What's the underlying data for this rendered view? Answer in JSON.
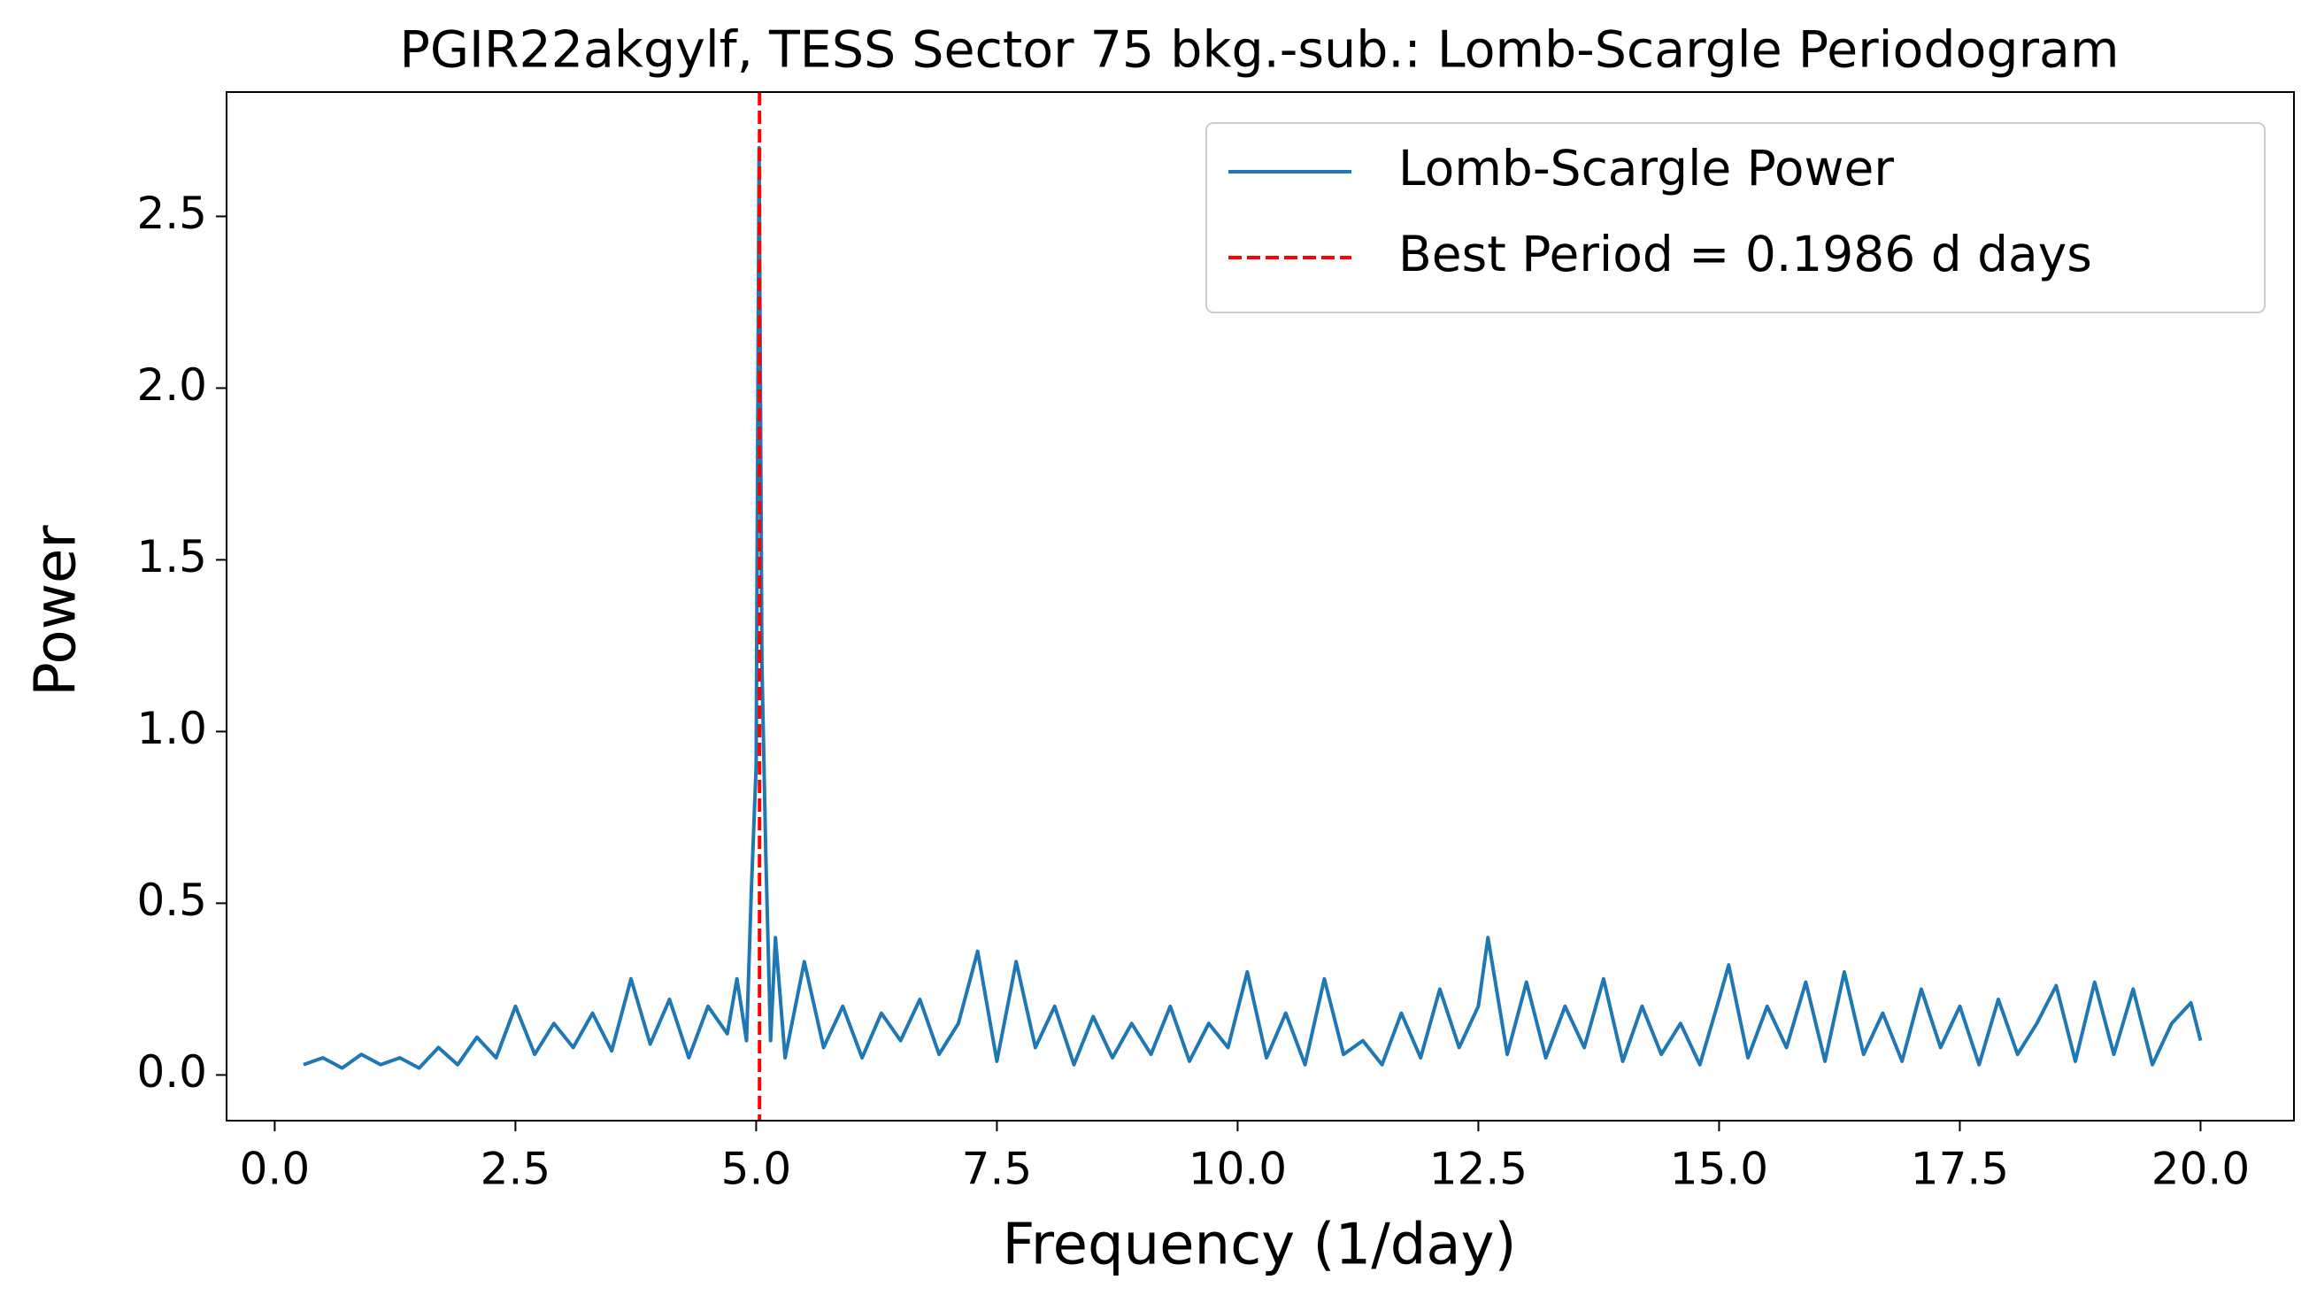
{
  "chart_data": {
    "type": "line",
    "title": "PGIR22akgylf, TESS Sector 75 bkg.-sub.: Lomb-Scargle Periodogram",
    "xlabel": "Frequency (1/day)",
    "ylabel": "Power",
    "xlim": [
      -0.5,
      20.97
    ],
    "ylim": [
      -0.133,
      2.862
    ],
    "xticks": [
      {
        "value": 0,
        "label": "0.0"
      },
      2.5,
      {
        "value": 5,
        "label": "5.0"
      },
      7.5,
      {
        "value": 10,
        "label": "10.0"
      },
      12.5,
      {
        "value": 15,
        "label": "15.0"
      },
      17.5,
      {
        "value": 20,
        "label": "20.0"
      }
    ],
    "yticks": [
      {
        "value": 0,
        "label": "0.0"
      },
      0.5,
      {
        "value": 1,
        "label": "1.0"
      },
      1.5,
      {
        "value": 2,
        "label": "2.0"
      },
      2.5
    ],
    "legend": "upper right",
    "series": [
      {
        "name": "Lomb-Scargle Power",
        "color": "#1f77b4",
        "x": [
          0.3,
          0.5,
          0.7,
          0.9,
          1.1,
          1.3,
          1.5,
          1.7,
          1.9,
          2.1,
          2.3,
          2.5,
          2.7,
          2.9,
          3.1,
          3.3,
          3.5,
          3.7,
          3.9,
          4.1,
          4.3,
          4.5,
          4.7,
          4.8,
          4.9,
          4.95,
          5.0,
          5.03,
          5.06,
          5.1,
          5.15,
          5.2,
          5.3,
          5.5,
          5.7,
          5.9,
          6.1,
          6.3,
          6.5,
          6.7,
          6.9,
          7.1,
          7.3,
          7.5,
          7.7,
          7.9,
          8.1,
          8.3,
          8.5,
          8.7,
          8.9,
          9.1,
          9.3,
          9.5,
          9.7,
          9.9,
          10.1,
          10.3,
          10.5,
          10.7,
          10.9,
          11.1,
          11.3,
          11.5,
          11.7,
          11.9,
          12.1,
          12.3,
          12.5,
          12.6,
          12.8,
          13.0,
          13.2,
          13.4,
          13.6,
          13.8,
          14.0,
          14.2,
          14.4,
          14.6,
          14.8,
          15.0,
          15.1,
          15.3,
          15.5,
          15.7,
          15.9,
          16.1,
          16.3,
          16.5,
          16.7,
          16.9,
          17.1,
          17.3,
          17.5,
          17.7,
          17.9,
          18.1,
          18.3,
          18.5,
          18.7,
          18.9,
          19.1,
          19.3,
          19.5,
          19.7,
          19.9,
          20.0
        ],
        "values": [
          0.03,
          0.05,
          0.02,
          0.06,
          0.03,
          0.05,
          0.02,
          0.08,
          0.03,
          0.11,
          0.05,
          0.2,
          0.06,
          0.15,
          0.08,
          0.18,
          0.07,
          0.28,
          0.09,
          0.22,
          0.05,
          0.2,
          0.12,
          0.28,
          0.1,
          0.54,
          0.9,
          2.7,
          1.2,
          0.64,
          0.1,
          0.4,
          0.05,
          0.33,
          0.08,
          0.2,
          0.05,
          0.18,
          0.1,
          0.22,
          0.06,
          0.15,
          0.36,
          0.04,
          0.33,
          0.08,
          0.2,
          0.03,
          0.17,
          0.05,
          0.15,
          0.06,
          0.2,
          0.04,
          0.15,
          0.08,
          0.3,
          0.05,
          0.18,
          0.03,
          0.28,
          0.06,
          0.1,
          0.03,
          0.18,
          0.05,
          0.25,
          0.08,
          0.2,
          0.4,
          0.06,
          0.27,
          0.05,
          0.2,
          0.08,
          0.28,
          0.04,
          0.2,
          0.06,
          0.15,
          0.03,
          0.22,
          0.32,
          0.05,
          0.2,
          0.08,
          0.27,
          0.04,
          0.3,
          0.06,
          0.18,
          0.04,
          0.25,
          0.08,
          0.2,
          0.03,
          0.22,
          0.06,
          0.15,
          0.26,
          0.04,
          0.27,
          0.06,
          0.25,
          0.03,
          0.15,
          0.21,
          0.1
        ]
      },
      {
        "name": "Best Period = 0.1986 d days",
        "color": "#ff0000",
        "style": "dashed",
        "vline": 5.035
      }
    ]
  }
}
